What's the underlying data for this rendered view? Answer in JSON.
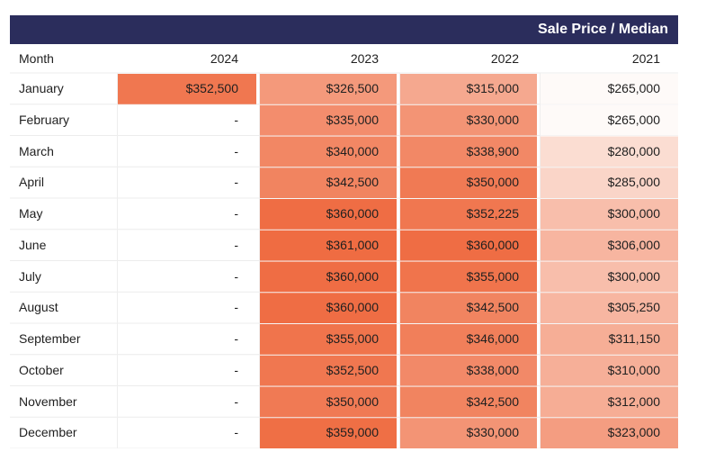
{
  "header": {
    "title": "Sale Price / Median",
    "bar_color": "#2b2d5c"
  },
  "chart_data": {
    "type": "heatmap",
    "row_header": "Month",
    "columns": [
      "2024",
      "2023",
      "2022",
      "2021"
    ],
    "rows": [
      {
        "month": "January",
        "values": [
          352500,
          326500,
          315000,
          265000
        ],
        "labels": [
          "$352,500",
          "$326,500",
          "$315,000",
          "$265,000"
        ]
      },
      {
        "month": "February",
        "values": [
          null,
          335000,
          330000,
          265000
        ],
        "labels": [
          "-",
          "$335,000",
          "$330,000",
          "$265,000"
        ]
      },
      {
        "month": "March",
        "values": [
          null,
          340000,
          338900,
          280000
        ],
        "labels": [
          "-",
          "$340,000",
          "$338,900",
          "$280,000"
        ]
      },
      {
        "month": "April",
        "values": [
          null,
          342500,
          350000,
          285000
        ],
        "labels": [
          "-",
          "$342,500",
          "$350,000",
          "$285,000"
        ]
      },
      {
        "month": "May",
        "values": [
          null,
          360000,
          352225,
          300000
        ],
        "labels": [
          "-",
          "$360,000",
          "$352,225",
          "$300,000"
        ]
      },
      {
        "month": "June",
        "values": [
          null,
          361000,
          360000,
          306000
        ],
        "labels": [
          "-",
          "$361,000",
          "$360,000",
          "$306,000"
        ]
      },
      {
        "month": "July",
        "values": [
          null,
          360000,
          355000,
          300000
        ],
        "labels": [
          "-",
          "$360,000",
          "$355,000",
          "$300,000"
        ]
      },
      {
        "month": "August",
        "values": [
          null,
          360000,
          342500,
          305250
        ],
        "labels": [
          "-",
          "$360,000",
          "$342,500",
          "$305,250"
        ]
      },
      {
        "month": "September",
        "values": [
          null,
          355000,
          346000,
          311150
        ],
        "labels": [
          "-",
          "$355,000",
          "$346,000",
          "$311,150"
        ]
      },
      {
        "month": "October",
        "values": [
          null,
          352500,
          338000,
          310000
        ],
        "labels": [
          "-",
          "$352,500",
          "$338,000",
          "$310,000"
        ]
      },
      {
        "month": "November",
        "values": [
          null,
          350000,
          342500,
          312000
        ],
        "labels": [
          "-",
          "$350,000",
          "$342,500",
          "$312,000"
        ]
      },
      {
        "month": "December",
        "values": [
          null,
          359000,
          330000,
          323000
        ],
        "labels": [
          "-",
          "$359,000",
          "$330,000",
          "$323,000"
        ]
      }
    ],
    "color_scale": {
      "low_color": "#fefaf8",
      "high_color": "#ef6c42"
    }
  }
}
